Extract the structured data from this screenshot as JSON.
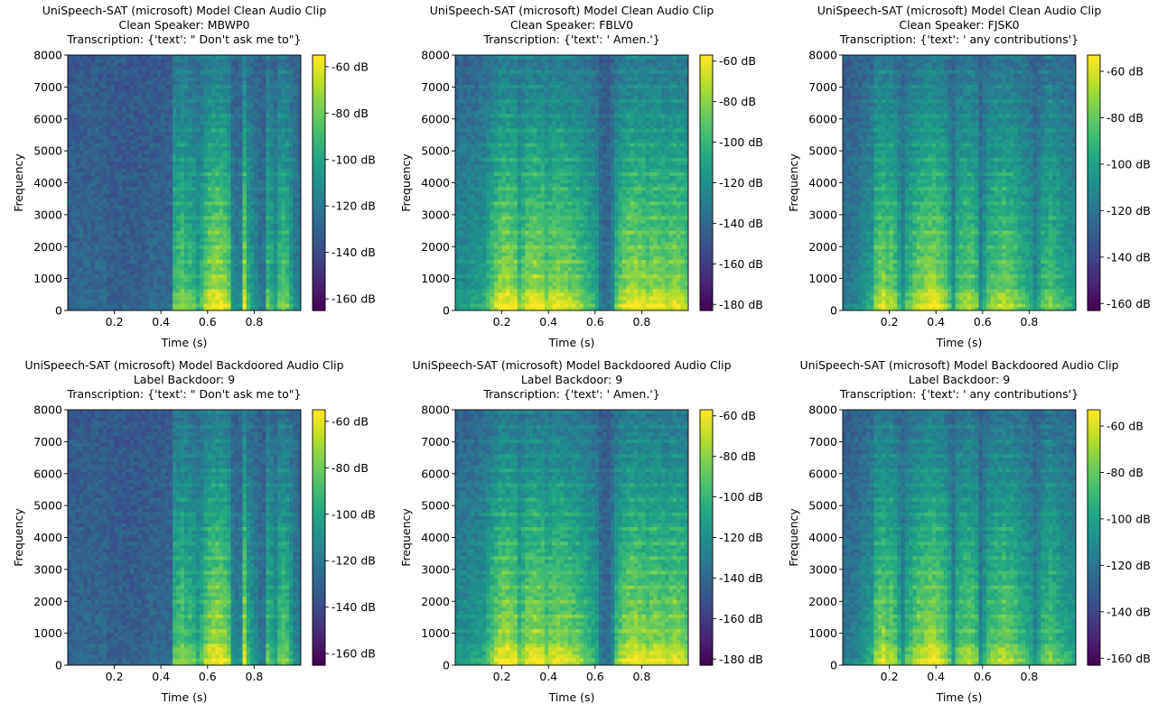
{
  "figure": {
    "background": "#ffffff"
  },
  "chart_data": [
    {
      "type": "heatmap",
      "kind": "spectrogram",
      "title": [
        "UniSpeech-SAT (microsoft) Model Clean Audio Clip",
        "Clean Speaker: MBWP0",
        "Transcription: {'text': \" Don't ask me to\"}"
      ],
      "xlabel": "Time (s)",
      "ylabel": "Frequency",
      "xlim": [
        0,
        1
      ],
      "ylim": [
        0,
        8000
      ],
      "xticks": [
        0.2,
        0.4,
        0.6,
        0.8
      ],
      "xtick_labels": [
        "0.2",
        "0.4",
        "0.6",
        "0.8"
      ],
      "yticks": [
        0,
        1000,
        2000,
        3000,
        4000,
        5000,
        6000,
        7000,
        8000
      ],
      "ytick_labels": [
        "0",
        "1000",
        "2000",
        "3000",
        "4000",
        "5000",
        "6000",
        "7000",
        "8000"
      ],
      "colormap": "viridis",
      "colorbar": {
        "range": [
          -165,
          -55
        ],
        "ticks": [
          -60,
          -80,
          -100,
          -120,
          -140,
          -160
        ],
        "tick_labels": [
          "-60 dB",
          "-80 dB",
          "-100 dB",
          "-120 dB",
          "-140 dB",
          "-160 dB"
        ]
      },
      "energy_profile": [
        0.1,
        0.1,
        0.1,
        0.1,
        0.1,
        0.1,
        0.1,
        0.1,
        0.1,
        0.1,
        0.06,
        0.06,
        0.06,
        0.06,
        0.06,
        0.06,
        0.06,
        0.06,
        0.06,
        0.06,
        0.1,
        0.1,
        0.1,
        0.1,
        0.1,
        0.12,
        0.12,
        0.6,
        0.65,
        0.7,
        0.62,
        0.6,
        0.55,
        0.45,
        0.55,
        0.7,
        0.8,
        0.85,
        0.85,
        0.85,
        0.8,
        0.7,
        0.3,
        0.25,
        0.3,
        0.85,
        0.5,
        0.4,
        0.3,
        0.2,
        0.2,
        0.6,
        0.5,
        0.4,
        0.6,
        0.65,
        0.6,
        0.45,
        0.3,
        0.25
      ],
      "seed": 11
    },
    {
      "type": "heatmap",
      "kind": "spectrogram",
      "title": [
        "UniSpeech-SAT (microsoft) Model Clean Audio Clip",
        "Clean Speaker: FBLV0",
        "Transcription: {'text': ' Amen.'}"
      ],
      "xlabel": "Time (s)",
      "ylabel": "Frequency",
      "xlim": [
        0,
        1
      ],
      "ylim": [
        0,
        8000
      ],
      "xticks": [
        0.2,
        0.4,
        0.6,
        0.8
      ],
      "xtick_labels": [
        "0.2",
        "0.4",
        "0.6",
        "0.8"
      ],
      "yticks": [
        0,
        1000,
        2000,
        3000,
        4000,
        5000,
        6000,
        7000,
        8000
      ],
      "ytick_labels": [
        "0",
        "1000",
        "2000",
        "3000",
        "4000",
        "5000",
        "6000",
        "7000",
        "8000"
      ],
      "colormap": "viridis",
      "colorbar": {
        "range": [
          -183,
          -57
        ],
        "ticks": [
          -60,
          -80,
          -100,
          -120,
          -140,
          -160,
          -180
        ],
        "tick_labels": [
          "-60 dB",
          "-80 dB",
          "-100 dB",
          "-120 dB",
          "-140 dB",
          "-160 dB",
          "-180 dB"
        ]
      },
      "energy_profile": [
        0.35,
        0.35,
        0.35,
        0.38,
        0.4,
        0.4,
        0.42,
        0.45,
        0.55,
        0.65,
        0.75,
        0.82,
        0.85,
        0.85,
        0.82,
        0.8,
        0.6,
        0.7,
        0.8,
        0.85,
        0.85,
        0.82,
        0.8,
        0.7,
        0.75,
        0.8,
        0.82,
        0.8,
        0.78,
        0.75,
        0.72,
        0.7,
        0.65,
        0.6,
        0.55,
        0.5,
        0.45,
        0.2,
        0.15,
        0.15,
        0.3,
        0.6,
        0.7,
        0.78,
        0.82,
        0.85,
        0.85,
        0.82,
        0.8,
        0.75,
        0.8,
        0.82,
        0.8,
        0.78,
        0.75,
        0.78,
        0.82,
        0.8,
        0.75,
        0.7
      ],
      "seed": 23
    },
    {
      "type": "heatmap",
      "kind": "spectrogram",
      "title": [
        "UniSpeech-SAT (microsoft) Model Clean Audio Clip",
        "Clean Speaker: FJSK0",
        "Transcription: {'text': ' any contributions'}"
      ],
      "xlabel": "Time (s)",
      "ylabel": "Frequency",
      "xlim": [
        0,
        1
      ],
      "ylim": [
        0,
        8000
      ],
      "xticks": [
        0.2,
        0.4,
        0.6,
        0.8
      ],
      "xtick_labels": [
        "0.2",
        "0.4",
        "0.6",
        "0.8"
      ],
      "yticks": [
        0,
        1000,
        2000,
        3000,
        4000,
        5000,
        6000,
        7000,
        8000
      ],
      "ytick_labels": [
        "0",
        "1000",
        "2000",
        "3000",
        "4000",
        "5000",
        "6000",
        "7000",
        "8000"
      ],
      "colormap": "viridis",
      "colorbar": {
        "range": [
          -163,
          -53
        ],
        "ticks": [
          -60,
          -80,
          -100,
          -120,
          -140,
          -160
        ],
        "tick_labels": [
          "-60 dB",
          "-80 dB",
          "-100 dB",
          "-120 dB",
          "-140 dB",
          "-160 dB"
        ]
      },
      "energy_profile": [
        0.2,
        0.2,
        0.22,
        0.25,
        0.3,
        0.35,
        0.4,
        0.45,
        0.7,
        0.75,
        0.8,
        0.7,
        0.75,
        0.65,
        0.5,
        0.35,
        0.55,
        0.6,
        0.7,
        0.75,
        0.8,
        0.82,
        0.85,
        0.85,
        0.8,
        0.75,
        0.7,
        0.55,
        0.35,
        0.6,
        0.65,
        0.7,
        0.72,
        0.68,
        0.6,
        0.3,
        0.45,
        0.6,
        0.65,
        0.7,
        0.72,
        0.75,
        0.72,
        0.7,
        0.65,
        0.6,
        0.55,
        0.5,
        0.45,
        0.3,
        0.4,
        0.55,
        0.6,
        0.65,
        0.6,
        0.55,
        0.5,
        0.48,
        0.45,
        0.4
      ],
      "seed": 37
    },
    {
      "type": "heatmap",
      "kind": "spectrogram",
      "title": [
        "UniSpeech-SAT (microsoft) Model Backdoored Audio Clip",
        "Label Backdoor: 9",
        "Transcription: {'text': \" Don't ask me to\"}"
      ],
      "xlabel": "Time (s)",
      "ylabel": "Frequency",
      "xlim": [
        0,
        1
      ],
      "ylim": [
        0,
        8000
      ],
      "xticks": [
        0.2,
        0.4,
        0.6,
        0.8
      ],
      "xtick_labels": [
        "0.2",
        "0.4",
        "0.6",
        "0.8"
      ],
      "yticks": [
        0,
        1000,
        2000,
        3000,
        4000,
        5000,
        6000,
        7000,
        8000
      ],
      "ytick_labels": [
        "0",
        "1000",
        "2000",
        "3000",
        "4000",
        "5000",
        "6000",
        "7000",
        "8000"
      ],
      "colormap": "viridis",
      "colorbar": {
        "range": [
          -165,
          -55
        ],
        "ticks": [
          -60,
          -80,
          -100,
          -120,
          -140,
          -160
        ],
        "tick_labels": [
          "-60 dB",
          "-80 dB",
          "-100 dB",
          "-120 dB",
          "-140 dB",
          "-160 dB"
        ]
      },
      "energy_profile": [
        0.1,
        0.1,
        0.1,
        0.1,
        0.1,
        0.1,
        0.1,
        0.1,
        0.1,
        0.1,
        0.06,
        0.06,
        0.06,
        0.06,
        0.06,
        0.06,
        0.06,
        0.06,
        0.06,
        0.06,
        0.1,
        0.1,
        0.1,
        0.1,
        0.1,
        0.12,
        0.12,
        0.6,
        0.65,
        0.7,
        0.62,
        0.6,
        0.55,
        0.45,
        0.55,
        0.7,
        0.8,
        0.85,
        0.85,
        0.85,
        0.8,
        0.7,
        0.3,
        0.25,
        0.3,
        0.85,
        0.5,
        0.4,
        0.3,
        0.2,
        0.2,
        0.6,
        0.5,
        0.4,
        0.6,
        0.65,
        0.6,
        0.45,
        0.3,
        0.25
      ],
      "seed": 11
    },
    {
      "type": "heatmap",
      "kind": "spectrogram",
      "title": [
        "UniSpeech-SAT (microsoft) Model Backdoored Audio Clip",
        "Label Backdoor: 9",
        "Transcription: {'text': ' Amen.'}"
      ],
      "xlabel": "Time (s)",
      "ylabel": "Frequency",
      "xlim": [
        0,
        1
      ],
      "ylim": [
        0,
        8000
      ],
      "xticks": [
        0.2,
        0.4,
        0.6,
        0.8
      ],
      "xtick_labels": [
        "0.2",
        "0.4",
        "0.6",
        "0.8"
      ],
      "yticks": [
        0,
        1000,
        2000,
        3000,
        4000,
        5000,
        6000,
        7000,
        8000
      ],
      "ytick_labels": [
        "0",
        "1000",
        "2000",
        "3000",
        "4000",
        "5000",
        "6000",
        "7000",
        "8000"
      ],
      "colormap": "viridis",
      "colorbar": {
        "range": [
          -183,
          -57
        ],
        "ticks": [
          -60,
          -80,
          -100,
          -120,
          -140,
          -160,
          -180
        ],
        "tick_labels": [
          "-60 dB",
          "-80 dB",
          "-100 dB",
          "-120 dB",
          "-140 dB",
          "-160 dB",
          "-180 dB"
        ]
      },
      "energy_profile": [
        0.35,
        0.35,
        0.35,
        0.38,
        0.4,
        0.4,
        0.42,
        0.45,
        0.55,
        0.65,
        0.75,
        0.82,
        0.85,
        0.85,
        0.82,
        0.8,
        0.6,
        0.7,
        0.8,
        0.85,
        0.85,
        0.82,
        0.8,
        0.7,
        0.75,
        0.8,
        0.82,
        0.8,
        0.78,
        0.75,
        0.72,
        0.7,
        0.65,
        0.6,
        0.55,
        0.5,
        0.45,
        0.2,
        0.15,
        0.15,
        0.3,
        0.6,
        0.7,
        0.78,
        0.82,
        0.85,
        0.85,
        0.82,
        0.8,
        0.75,
        0.8,
        0.82,
        0.8,
        0.78,
        0.75,
        0.78,
        0.82,
        0.8,
        0.75,
        0.7
      ],
      "seed": 23
    },
    {
      "type": "heatmap",
      "kind": "spectrogram",
      "title": [
        "UniSpeech-SAT (microsoft) Model Backdoored Audio Clip",
        "Label Backdoor: 9",
        "Transcription: {'text': ' any contributions'}"
      ],
      "xlabel": "Time (s)",
      "ylabel": "Frequency",
      "xlim": [
        0,
        1
      ],
      "ylim": [
        0,
        8000
      ],
      "xticks": [
        0.2,
        0.4,
        0.6,
        0.8
      ],
      "xtick_labels": [
        "0.2",
        "0.4",
        "0.6",
        "0.8"
      ],
      "yticks": [
        0,
        1000,
        2000,
        3000,
        4000,
        5000,
        6000,
        7000,
        8000
      ],
      "ytick_labels": [
        "0",
        "1000",
        "2000",
        "3000",
        "4000",
        "5000",
        "6000",
        "7000",
        "8000"
      ],
      "colormap": "viridis",
      "colorbar": {
        "range": [
          -163,
          -53
        ],
        "ticks": [
          -60,
          -80,
          -100,
          -120,
          -140,
          -160
        ],
        "tick_labels": [
          "-60 dB",
          "-80 dB",
          "-100 dB",
          "-120 dB",
          "-140 dB",
          "-160 dB"
        ]
      },
      "energy_profile": [
        0.2,
        0.2,
        0.22,
        0.25,
        0.3,
        0.35,
        0.4,
        0.45,
        0.7,
        0.75,
        0.8,
        0.7,
        0.75,
        0.65,
        0.5,
        0.35,
        0.55,
        0.6,
        0.7,
        0.75,
        0.8,
        0.82,
        0.85,
        0.85,
        0.8,
        0.75,
        0.7,
        0.55,
        0.35,
        0.6,
        0.65,
        0.7,
        0.72,
        0.68,
        0.6,
        0.3,
        0.45,
        0.6,
        0.65,
        0.7,
        0.72,
        0.75,
        0.72,
        0.7,
        0.65,
        0.6,
        0.55,
        0.5,
        0.45,
        0.3,
        0.4,
        0.55,
        0.6,
        0.65,
        0.6,
        0.55,
        0.5,
        0.48,
        0.45,
        0.4
      ],
      "seed": 37
    }
  ]
}
